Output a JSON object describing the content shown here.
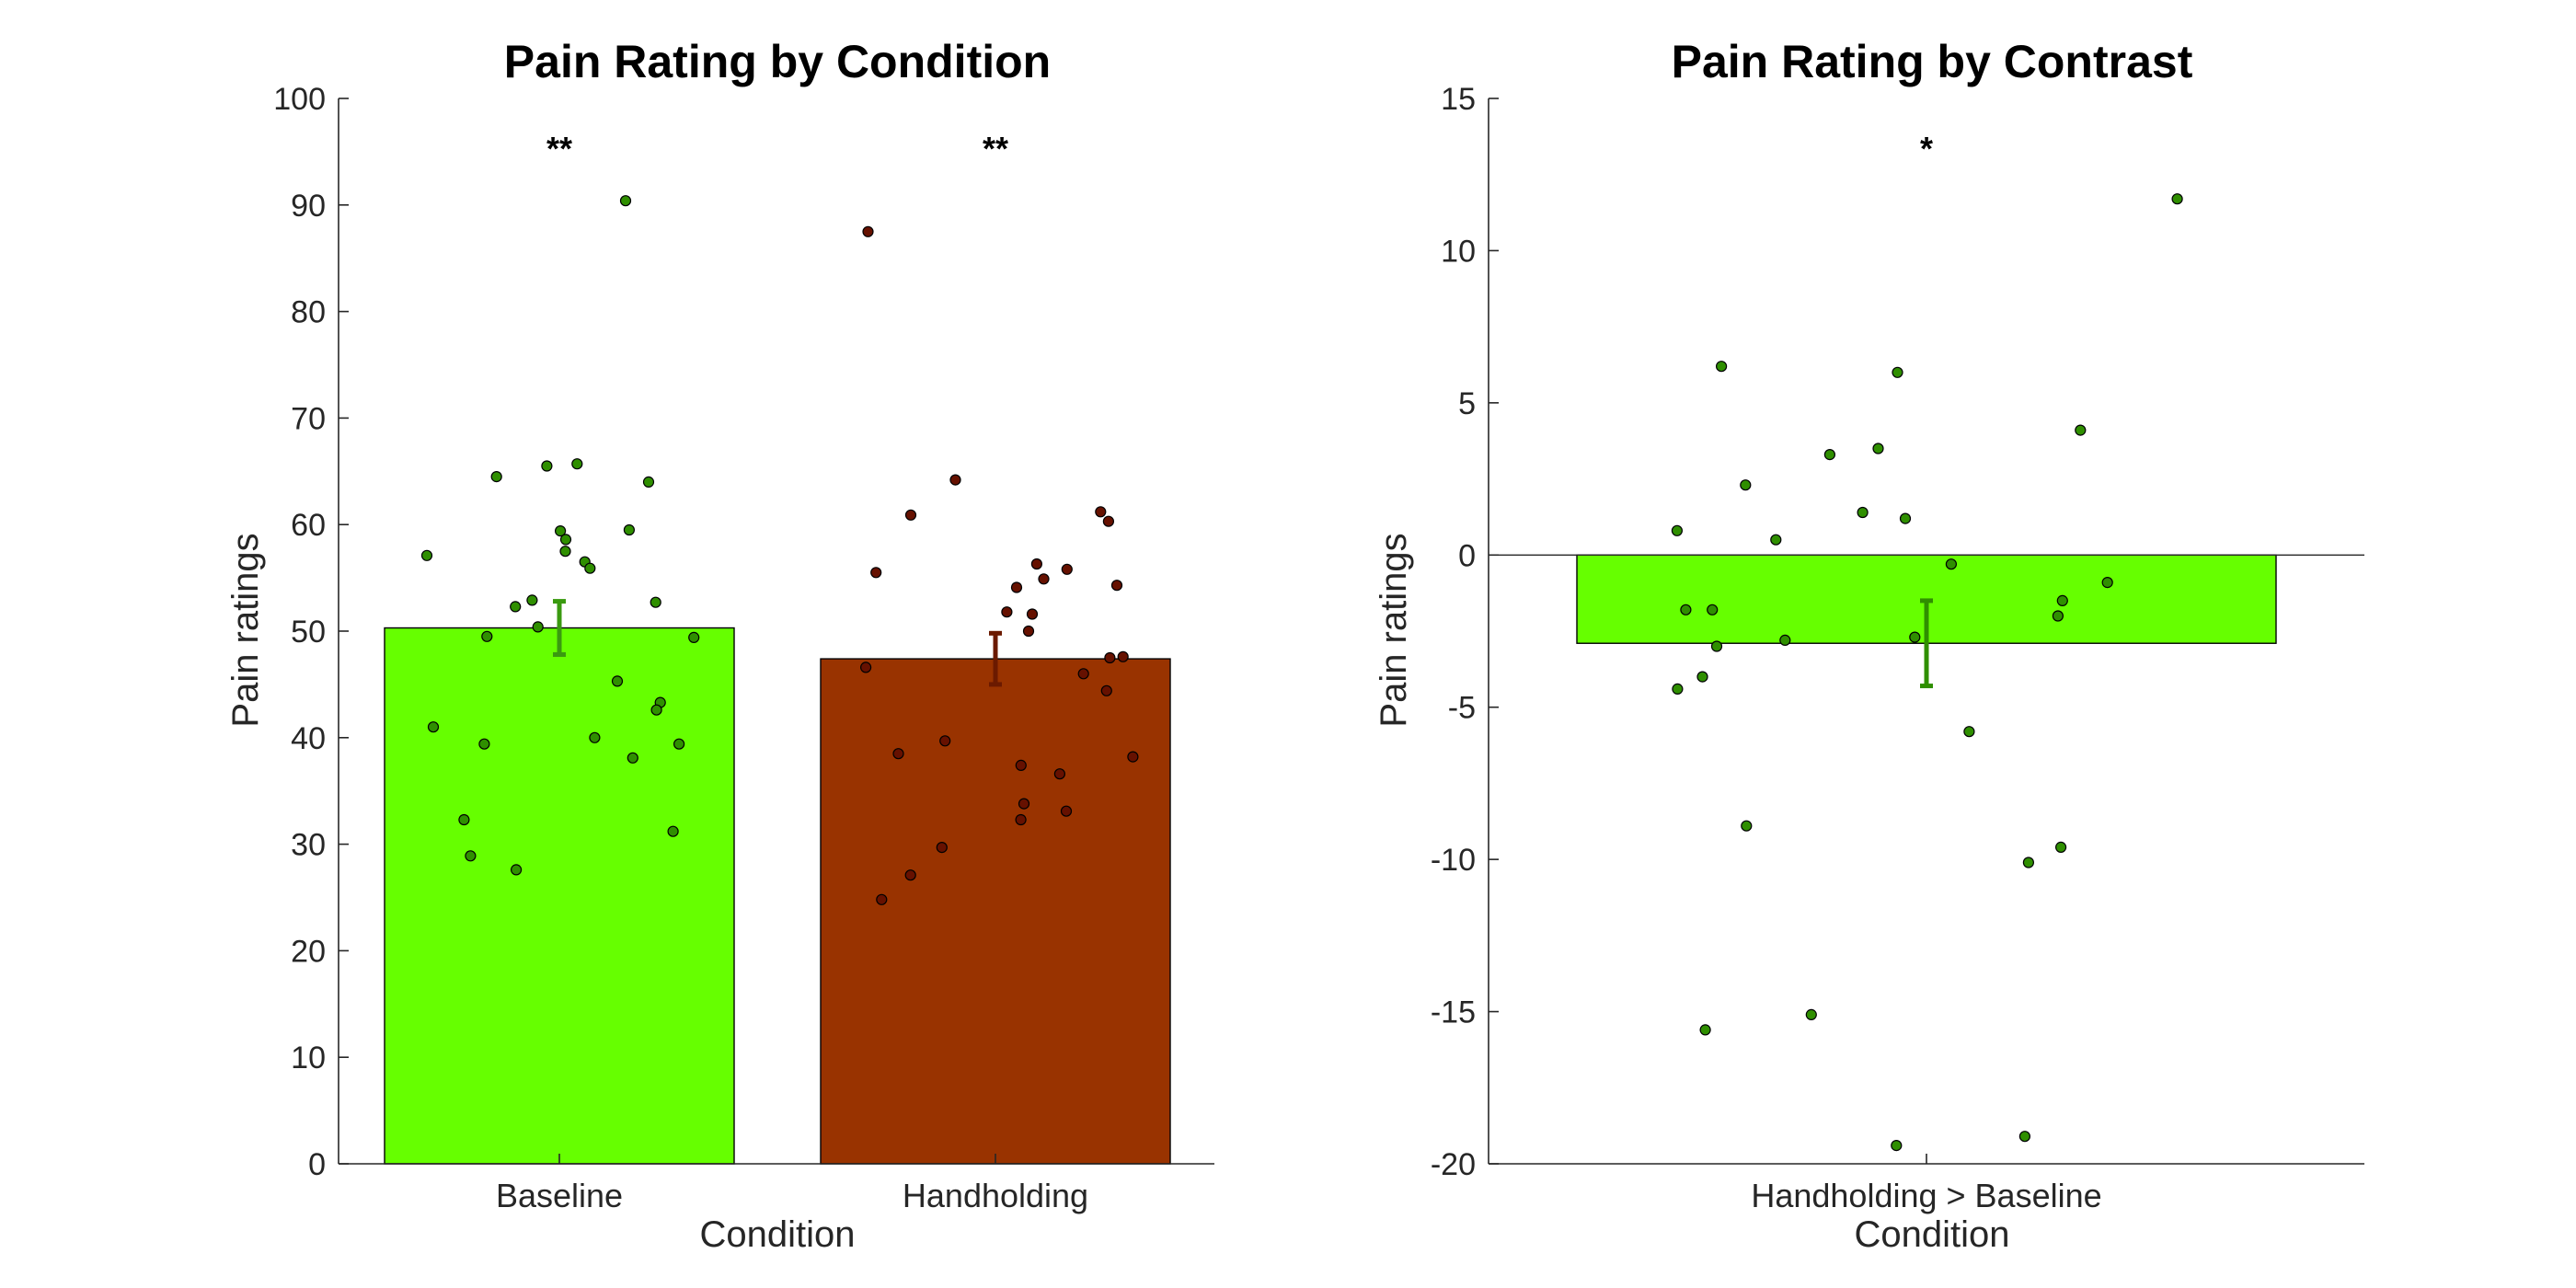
{
  "colors": {
    "baseline": "#66ff00",
    "handholding": "#993300",
    "contrast": "#66ff00",
    "baseline_points": "#2f8f00",
    "handholding_points": "#661100",
    "contrast_points": "#2f8f00",
    "baseline_errorbar": "#3a9a10",
    "handholding_errorbar": "#6b1a00",
    "contrast_errorbar": "#2f8f00"
  },
  "chart_data": [
    {
      "type": "bar",
      "title": "Pain Rating by Condition",
      "xlabel": "Condition",
      "ylabel": "Pain ratings",
      "ylim": [
        0,
        100
      ],
      "yticks": [
        0,
        10,
        20,
        30,
        40,
        50,
        60,
        70,
        80,
        90,
        100
      ],
      "ytick_labels": [
        "0",
        "10",
        "20",
        "30",
        "40",
        "50",
        "60",
        "70",
        "80",
        "90",
        "100"
      ],
      "categories": [
        "Baseline",
        "Handholding"
      ],
      "values": [
        50.3,
        47.4
      ],
      "errors": [
        2.5,
        2.4
      ],
      "significance": [
        "**",
        "**"
      ],
      "points": [
        [
          90.4,
          65.7,
          65.5,
          64.5,
          64.0,
          59.5,
          59.4,
          58.6,
          57.5,
          57.1,
          56.5,
          55.9,
          52.9,
          52.7,
          52.3,
          50.4,
          49.5,
          49.4,
          45.3,
          43.3,
          42.6,
          41.0,
          40.0,
          39.4,
          39.4,
          38.1,
          32.3,
          31.2,
          28.9,
          27.6
        ],
        [
          87.5,
          64.2,
          61.2,
          60.9,
          60.3,
          56.3,
          55.8,
          55.5,
          54.9,
          54.3,
          54.1,
          51.8,
          51.6,
          50.0,
          47.6,
          47.5,
          46.6,
          46.0,
          44.4,
          39.7,
          38.5,
          38.2,
          37.4,
          36.6,
          33.8,
          33.1,
          32.3,
          29.7,
          27.1,
          24.8
        ]
      ]
    },
    {
      "type": "bar",
      "title": "Pain Rating by Contrast",
      "xlabel": "Condition",
      "ylabel": "Pain ratings",
      "ylim": [
        -20,
        15
      ],
      "yticks": [
        -20,
        -15,
        -10,
        -5,
        0,
        5,
        10,
        15
      ],
      "ytick_labels": [
        "-20",
        "-15",
        "-10",
        "-5",
        "0",
        "5",
        "10",
        "15"
      ],
      "categories": [
        "Handholding > Baseline"
      ],
      "values": [
        -2.9
      ],
      "errors": [
        1.4
      ],
      "significance": [
        "*"
      ],
      "points": [
        [
          11.7,
          6.2,
          6.0,
          4.1,
          3.5,
          3.3,
          2.3,
          1.4,
          1.2,
          0.8,
          0.5,
          -0.3,
          -0.9,
          -1.5,
          -1.8,
          -1.8,
          -2.0,
          -2.7,
          -2.8,
          -3.0,
          -4.0,
          -4.4,
          -5.8,
          -8.9,
          -9.6,
          -10.1,
          -15.1,
          -15.6,
          -19.1,
          -19.4
        ]
      ]
    }
  ]
}
